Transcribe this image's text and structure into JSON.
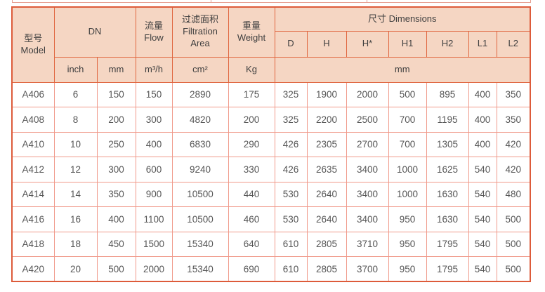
{
  "colors": {
    "header_bg": "#f5d6c3",
    "header_border": "#e0663f",
    "outer_border": "#dd5b3a",
    "data_grid": "#f09a8b",
    "header_text": "#3f3f3f",
    "data_text": "#565656"
  },
  "table": {
    "header": {
      "model": {
        "zh": "型号",
        "en": "Model"
      },
      "dn": "DN",
      "dn_units": [
        "inch",
        "mm"
      ],
      "flow": {
        "zh": "流量",
        "en": "Flow",
        "unit": "m³/h"
      },
      "filtration": {
        "zh": "过滤面积",
        "en": "Filtration Area",
        "unit": "cm²"
      },
      "weight": {
        "zh": "重量",
        "en": "Weight",
        "unit": "Kg"
      },
      "dimensions": {
        "zh": "尺寸",
        "en": "Dimensions",
        "unit": "mm",
        "subcols": [
          "D",
          "H",
          "H*",
          "H1",
          "H2",
          "L1",
          "L2"
        ]
      }
    },
    "rows": [
      [
        "A406",
        "6",
        "150",
        "150",
        "2890",
        "175",
        "325",
        "1900",
        "2000",
        "500",
        "895",
        "400",
        "350"
      ],
      [
        "A408",
        "8",
        "200",
        "300",
        "4820",
        "200",
        "325",
        "2200",
        "2500",
        "700",
        "1195",
        "400",
        "350"
      ],
      [
        "A410",
        "10",
        "250",
        "400",
        "6830",
        "290",
        "426",
        "2305",
        "2700",
        "700",
        "1305",
        "400",
        "420"
      ],
      [
        "A412",
        "12",
        "300",
        "600",
        "9240",
        "330",
        "426",
        "2635",
        "3400",
        "1000",
        "1625",
        "540",
        "420"
      ],
      [
        "A414",
        "14",
        "350",
        "900",
        "10500",
        "440",
        "530",
        "2640",
        "3400",
        "1000",
        "1630",
        "540",
        "480"
      ],
      [
        "A416",
        "16",
        "400",
        "1100",
        "10500",
        "460",
        "530",
        "2640",
        "3400",
        "950",
        "1630",
        "540",
        "500"
      ],
      [
        "A418",
        "18",
        "450",
        "1500",
        "15340",
        "640",
        "610",
        "2805",
        "3710",
        "950",
        "1795",
        "540",
        "500"
      ],
      [
        "A420",
        "20",
        "500",
        "2000",
        "15340",
        "690",
        "610",
        "2805",
        "3700",
        "950",
        "1795",
        "540",
        "500"
      ]
    ]
  }
}
